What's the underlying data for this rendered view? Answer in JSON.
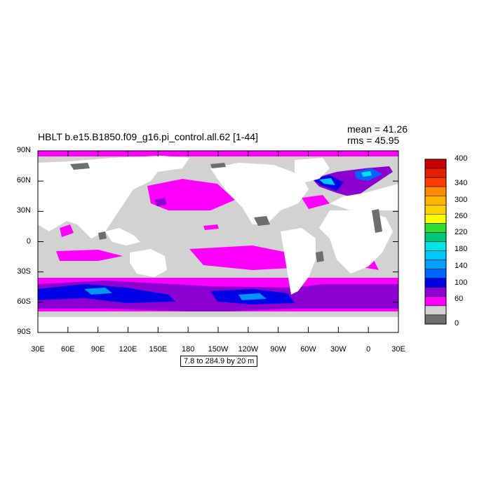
{
  "title": "HBLT b.e15.B1850.f09_g16.pi_control.all.62 [1-44]",
  "stats": {
    "mean": "mean = 41.26",
    "rms": "rms = 45.95"
  },
  "footnote": "7.8 to 284.9 by 20 m",
  "lat_labels": [
    "90N",
    "60N",
    "30N",
    "0",
    "30S",
    "60S",
    "90S"
  ],
  "lon_labels": [
    "30E",
    "60E",
    "90E",
    "120E",
    "150E",
    "180",
    "150W",
    "120W",
    "90W",
    "60W",
    "30W",
    "0",
    "30E"
  ],
  "colorbar": {
    "labels": [
      "400",
      "340",
      "300",
      "260",
      "220",
      "180",
      "140",
      "100",
      "60",
      "0"
    ],
    "colors": [
      "#c80000",
      "#e61e00",
      "#ff3c00",
      "#ff8c00",
      "#ffb400",
      "#ffd200",
      "#ffff00",
      "#32dc32",
      "#00c878",
      "#00e6e6",
      "#00c8ff",
      "#00a0ff",
      "#0064ff",
      "#0000e6",
      "#8c00d2",
      "#ff00ff",
      "#d2d2d2",
      "#6e6e6e"
    ]
  },
  "colors": {
    "land": "#ffffff",
    "low_band": "#d2d2d2",
    "lowest_band": "#6e6e6e",
    "magenta": "#ff00ff",
    "purple": "#8c00d2",
    "blue": "#0000e6",
    "light_blue": "#0096ff"
  }
}
